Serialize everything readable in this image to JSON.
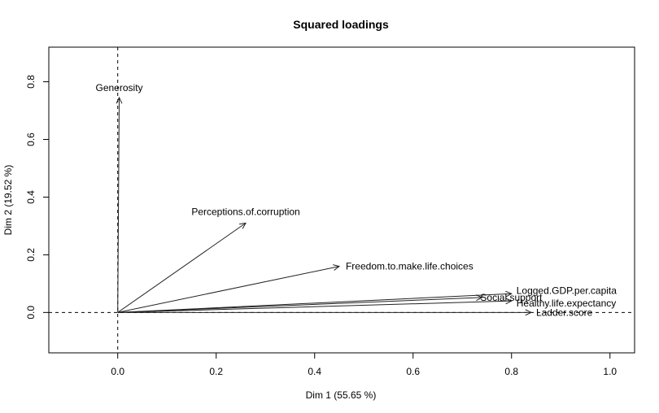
{
  "chart_data": {
    "type": "scatter",
    "title": "Squared loadings",
    "xlabel": "Dim 1 (55.65 %)",
    "ylabel": "Dim 2 (19.52 %)",
    "xlim": [
      -0.14,
      1.05
    ],
    "ylim": [
      -0.14,
      0.92
    ],
    "x_ticks": [
      "0.0",
      "0.2",
      "0.4",
      "0.6",
      "0.8",
      "1.0"
    ],
    "y_ticks": [
      "0.0",
      "0.2",
      "0.4",
      "0.6",
      "0.8"
    ],
    "reference_lines": {
      "x": 0,
      "y": 0,
      "style": "dashed"
    },
    "arrows": [
      {
        "name": "Generosity",
        "x": 0.003,
        "y": 0.745
      },
      {
        "name": "Perceptions.of.corruption",
        "x": 0.26,
        "y": 0.31
      },
      {
        "name": "Freedom.to.make.life.choices",
        "x": 0.45,
        "y": 0.16
      },
      {
        "name": "Logged.GDP.per.capita",
        "x": 0.8,
        "y": 0.065
      },
      {
        "name": "Social.support",
        "x": 0.74,
        "y": 0.052
      },
      {
        "name": "Healthy.life.expectancy",
        "x": 0.8,
        "y": 0.04
      },
      {
        "name": "Ladder.score",
        "x": 0.84,
        "y": 0.0
      }
    ]
  }
}
